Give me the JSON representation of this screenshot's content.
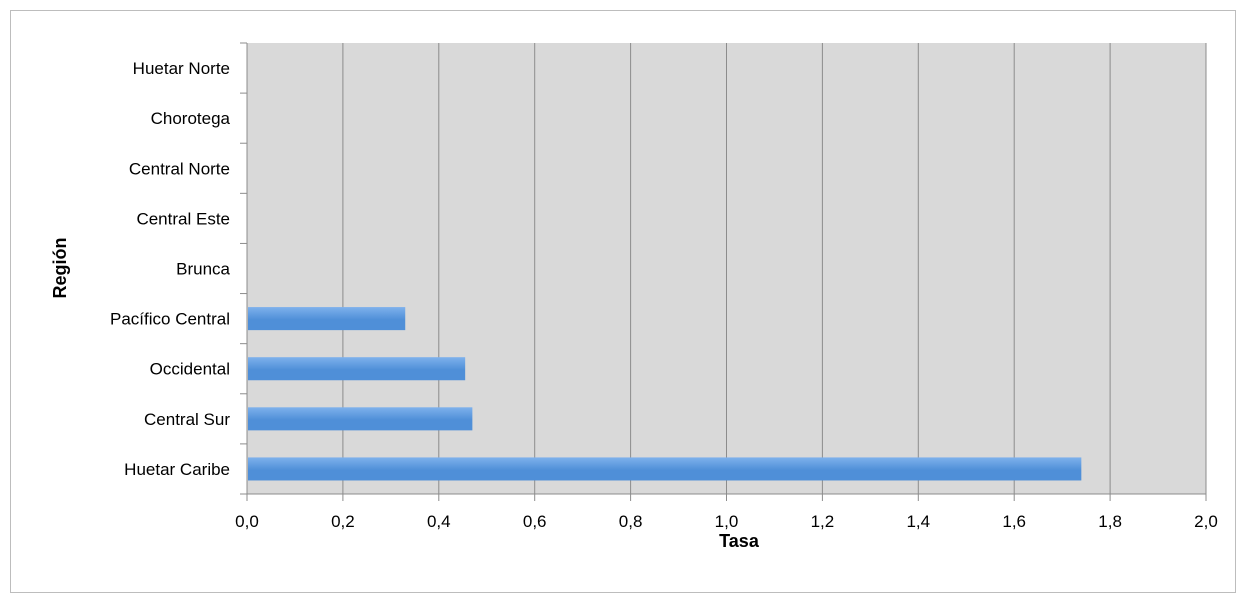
{
  "chart_data": {
    "type": "bar",
    "orientation": "horizontal",
    "categories": [
      "Huetar Caribe",
      "Central Sur",
      "Occidental",
      "Pacífico Central",
      "Brunca",
      "Central Este",
      "Central Norte",
      "Chorotega",
      "Huetar Norte"
    ],
    "values": [
      1.74,
      0.47,
      0.455,
      0.33,
      0,
      0,
      0,
      0,
      0
    ],
    "title": "",
    "xlabel": "Tasa",
    "ylabel": "Región",
    "xlim": [
      0,
      2.0
    ],
    "xticks": [
      "0,0",
      "0,2",
      "0,4",
      "0,6",
      "0,8",
      "1,0",
      "1,2",
      "1,4",
      "1,6",
      "1,8",
      "2,0"
    ],
    "grid": true,
    "legend": "none",
    "colors": {
      "bar": "#4f8fd8",
      "bar_light": "#7eb1ec",
      "plot_background": "#d9d9d9",
      "gridline": "#8c8c8c"
    }
  }
}
